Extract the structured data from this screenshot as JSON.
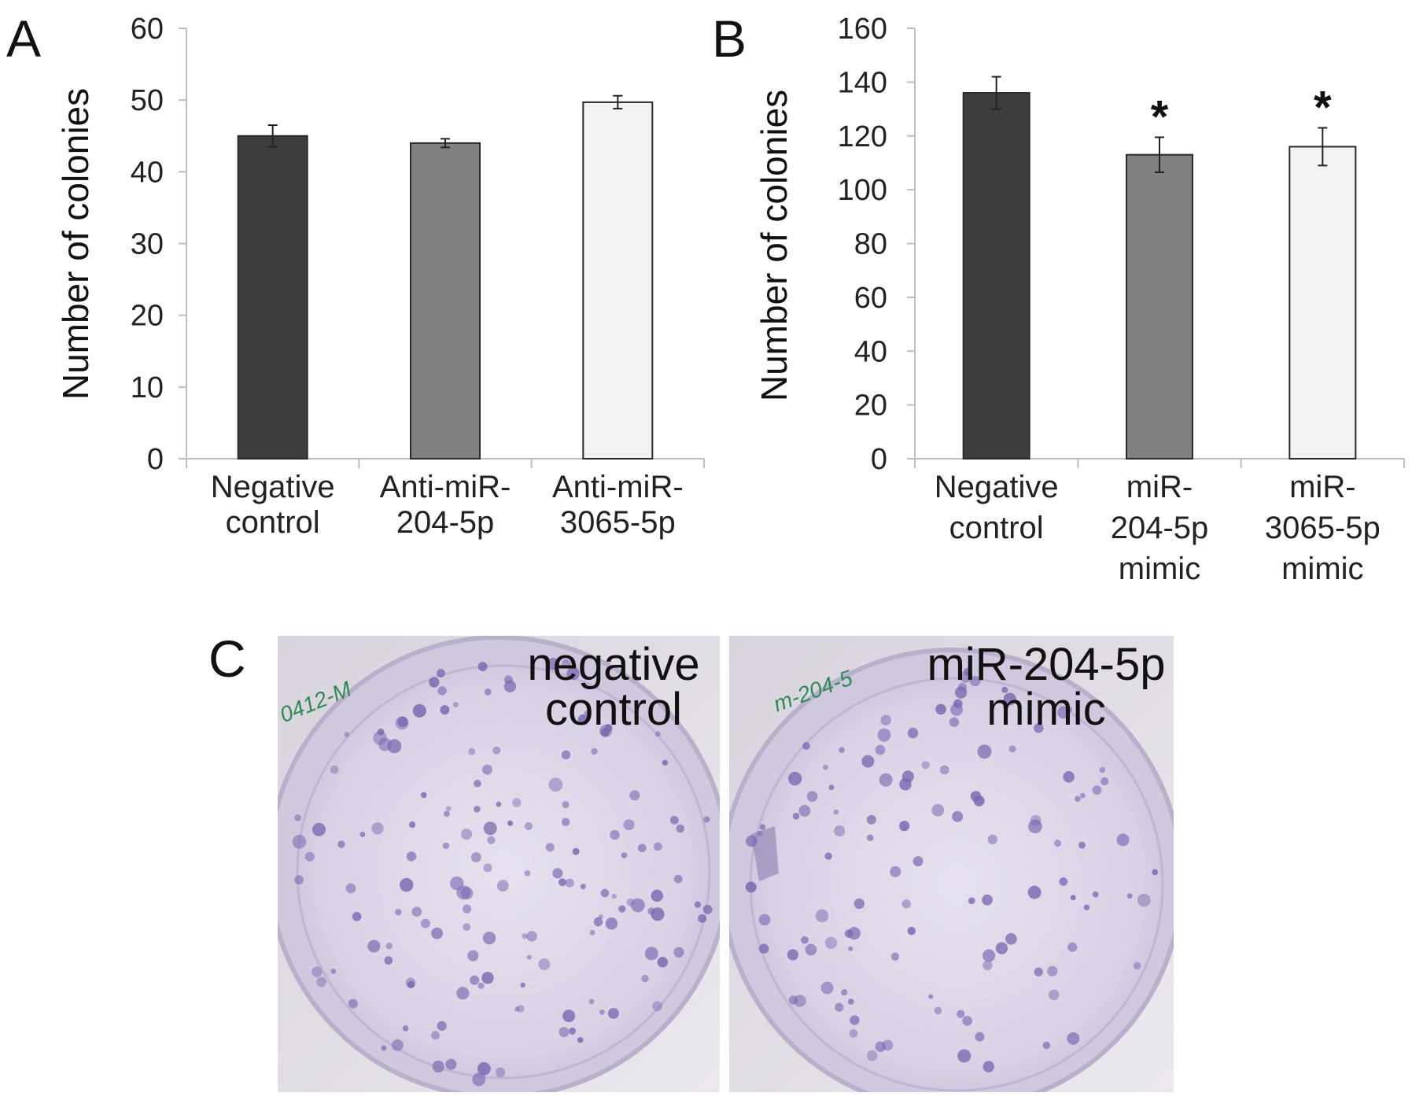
{
  "chart_data": [
    {
      "panel": "A",
      "type": "bar",
      "ylabel": "Number of colonies",
      "xlabel": "",
      "ylim": [
        0,
        60
      ],
      "yticks": [
        "0",
        "10",
        "20",
        "30",
        "40",
        "50",
        "60"
      ],
      "categories": [
        [
          "Negative",
          "control"
        ],
        [
          "Anti-miR-",
          "204-5p"
        ],
        [
          "Anti-miR-",
          "3065-5p"
        ]
      ],
      "values": [
        45,
        44,
        49.7
      ],
      "errors": [
        1.5,
        0.6,
        0.9
      ],
      "colors": [
        "#3d3d3d",
        "#808080",
        "#f2f2f2"
      ],
      "significance": [
        "",
        "",
        ""
      ],
      "grid": false
    },
    {
      "panel": "B",
      "type": "bar",
      "ylabel": "Number of colonies",
      "xlabel": "",
      "ylim": [
        0,
        160
      ],
      "yticks": [
        "0",
        "20",
        "40",
        "60",
        "80",
        "100",
        "120",
        "140",
        "160"
      ],
      "categories": [
        [
          "Negative",
          "control"
        ],
        [
          "miR-",
          "204-5p",
          "mimic"
        ],
        [
          "miR-",
          "3065-5p",
          "mimic"
        ]
      ],
      "values": [
        136,
        113,
        116
      ],
      "errors": [
        6,
        6.5,
        7
      ],
      "colors": [
        "#3d3d3d",
        "#808080",
        "#f2f2f2"
      ],
      "significance": [
        "",
        "*",
        "*"
      ],
      "grid": false
    }
  ],
  "panel_c": {
    "letter": "C",
    "dishes": [
      {
        "label": [
          "negative",
          "control"
        ],
        "marker_text": "0412-M"
      },
      {
        "label": [
          "miR-204-5p",
          "mimic"
        ],
        "marker_text": "m-204-5"
      }
    ]
  }
}
